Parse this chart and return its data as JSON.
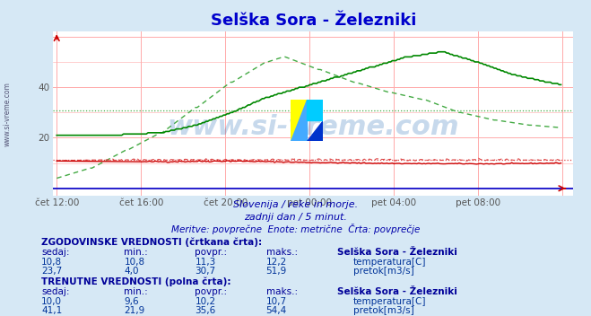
{
  "title": "Selška Sora - Železniki",
  "title_color": "#0000cc",
  "bg_color": "#d6e8f5",
  "plot_bg_color": "#ffffff",
  "figsize": [
    6.59,
    3.52
  ],
  "dpi": 100,
  "watermark": "www.si-vreme.com",
  "subtitle1": "Slovenija / reke in morje.",
  "subtitle2": "zadnji dan / 5 minut.",
  "subtitle3": "Meritve: povprečne  Enote: metrične  Črta: povprečje",
  "subtitle_color": "#0000aa",
  "axis_color": "#0000cc",
  "temp_solid_color": "#cc0000",
  "temp_dashed_color": "#dd4444",
  "flow_solid_color": "#008800",
  "flow_dashed_color": "#44aa44",
  "hgrid_color": "#ffaaaa",
  "vgrid_color": "#ffaaaa",
  "hist_temp_avg": 11.3,
  "hist_flow_avg": 30.7,
  "table_header_color": "#000099",
  "table_value_color": "#003399",
  "legend_temp_color": "#cc0000",
  "legend_flow_color": "#008800",
  "tick_label_color": "#555555",
  "side_label": "www.si-vreme.com",
  "xtick_labels": [
    "čet 12:00",
    "čet 16:00",
    "čet 20:00",
    "pet 00:00",
    "pet 04:00",
    "pet 08:00"
  ],
  "xtick_positions": [
    0,
    48,
    96,
    144,
    192,
    240
  ],
  "ytick_labels": [
    "20",
    "40"
  ],
  "ytick_positions": [
    20,
    40
  ],
  "hist_section_header": "ZGODOVINSKE VREDNOSTI (črtkana črta):",
  "curr_section_header": "TRENUTNE VREDNOSTI (polna črta):",
  "col_headers": [
    "sedaj:",
    "min.:",
    "povpr.:",
    "maks.:",
    "Selška Sora - Železniki"
  ],
  "hist_temp_vals": [
    "10,8",
    "10,8",
    "11,3",
    "12,2"
  ],
  "hist_flow_vals": [
    "23,7",
    "4,0",
    "30,7",
    "51,9"
  ],
  "curr_temp_vals": [
    "10,0",
    "9,6",
    "10,2",
    "10,7"
  ],
  "curr_flow_vals": [
    "41,1",
    "21,9",
    "35,6",
    "54,4"
  ],
  "temp_label": "temperatura[C]",
  "flow_label": "pretok[m3/s]"
}
